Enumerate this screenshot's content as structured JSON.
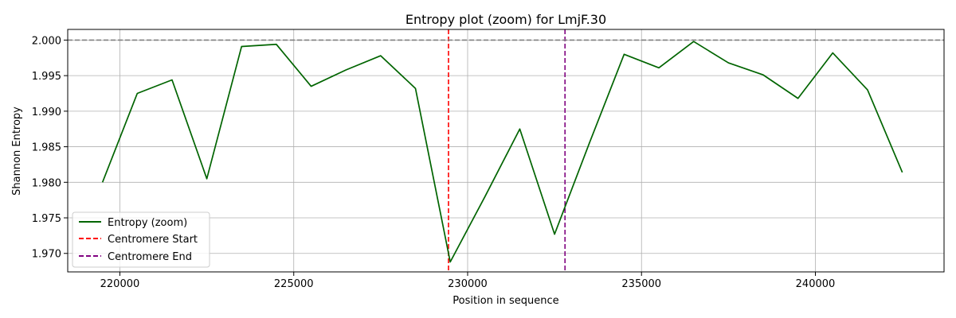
{
  "chart_data": {
    "type": "line",
    "title": "Entropy plot (zoom) for LmjF.30",
    "xlabel": "Position in sequence",
    "ylabel": "Shannon Entropy",
    "xlim": [
      218500,
      243700
    ],
    "ylim": [
      1.9674,
      2.0015
    ],
    "x_ticks": [
      220000,
      225000,
      230000,
      235000,
      240000
    ],
    "y_ticks": [
      1.97,
      1.975,
      1.98,
      1.985,
      1.99,
      1.995,
      2.0
    ],
    "x_tick_labels": [
      "220000",
      "225000",
      "230000",
      "235000",
      "240000"
    ],
    "y_tick_labels": [
      "1.970",
      "1.975",
      "1.980",
      "1.985",
      "1.990",
      "1.995",
      "2.000"
    ],
    "grid": true,
    "legend_position": "lower-left",
    "series": [
      {
        "name": "Entropy (zoom)",
        "color": "#006400",
        "style": "solid",
        "x": [
          219500,
          220500,
          221500,
          222500,
          223500,
          224500,
          225500,
          226500,
          227500,
          228500,
          229500,
          230500,
          231500,
          232500,
          233500,
          234500,
          235500,
          236500,
          237500,
          238500,
          239500,
          240500,
          241500,
          242500
        ],
        "values": [
          1.98,
          1.9925,
          1.9944,
          1.9805,
          1.9991,
          1.9994,
          1.9935,
          1.9958,
          1.9978,
          1.9932,
          1.9688,
          1.978,
          1.9875,
          1.9727,
          1.9855,
          1.998,
          1.9961,
          1.9998,
          1.9968,
          1.9951,
          1.9918,
          1.9982,
          1.993,
          1.9814
        ]
      }
    ],
    "reference_lines": [
      {
        "name": "Centromere Start",
        "orientation": "vertical",
        "value": 229450,
        "color": "#ff0000",
        "style": "dashed"
      },
      {
        "name": "Centromere End",
        "orientation": "vertical",
        "value": 232800,
        "color": "#800080",
        "style": "dashed"
      },
      {
        "name": "",
        "orientation": "horizontal",
        "value": 2.0,
        "color": "#808080",
        "style": "dashed"
      }
    ]
  }
}
